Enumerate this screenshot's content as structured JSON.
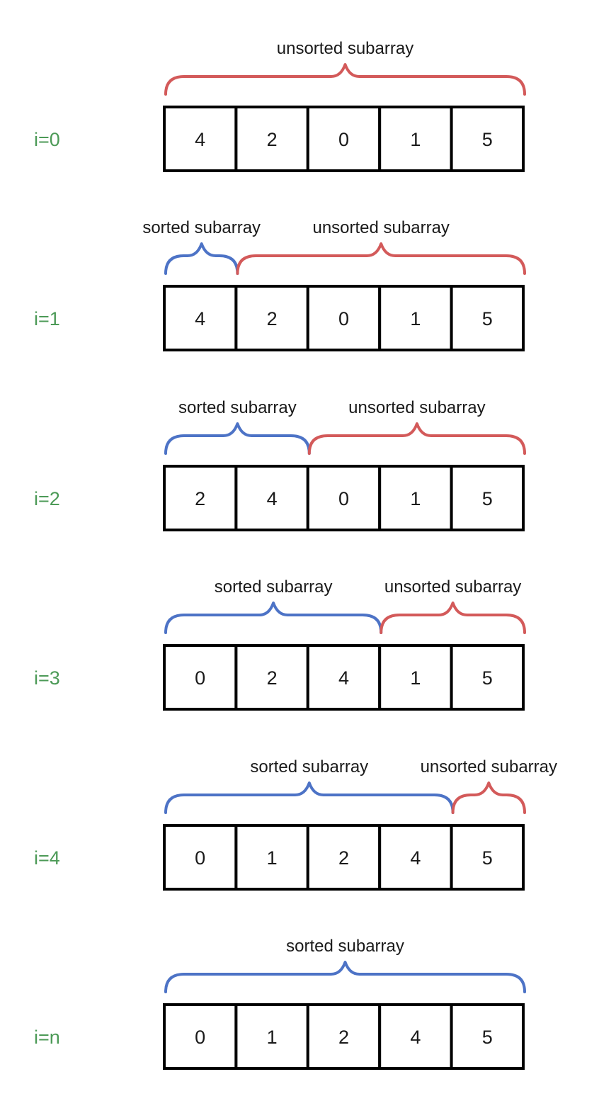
{
  "labels": {
    "sorted": "sorted subarray",
    "unsorted": "unsorted subarray"
  },
  "colors": {
    "sorted": "#4d73c6",
    "unsorted": "#d35a5a",
    "step_label": "#4c9a57"
  },
  "steps": [
    {
      "label": "i=0",
      "values": [
        4,
        2,
        0,
        1,
        5
      ],
      "sorted_count": 0
    },
    {
      "label": "i=1",
      "values": [
        4,
        2,
        0,
        1,
        5
      ],
      "sorted_count": 1
    },
    {
      "label": "i=2",
      "values": [
        2,
        4,
        0,
        1,
        5
      ],
      "sorted_count": 2
    },
    {
      "label": "i=3",
      "values": [
        0,
        2,
        4,
        1,
        5
      ],
      "sorted_count": 3
    },
    {
      "label": "i=4",
      "values": [
        0,
        1,
        2,
        4,
        5
      ],
      "sorted_count": 4
    },
    {
      "label": "i=n",
      "values": [
        0,
        1,
        2,
        4,
        5
      ],
      "sorted_count": 5
    }
  ]
}
